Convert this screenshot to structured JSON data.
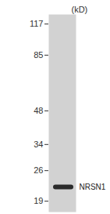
{
  "chart_data": {
    "type": "blot",
    "y_label": "(kD)",
    "log": "y",
    "ylim": [
      17,
      129
    ],
    "yticks": [
      117,
      85,
      48,
      34,
      26,
      19
    ],
    "categories": [
      "NRSN1"
    ],
    "values": [
      22
    ],
    "color": "#2b2b2b"
  }
}
